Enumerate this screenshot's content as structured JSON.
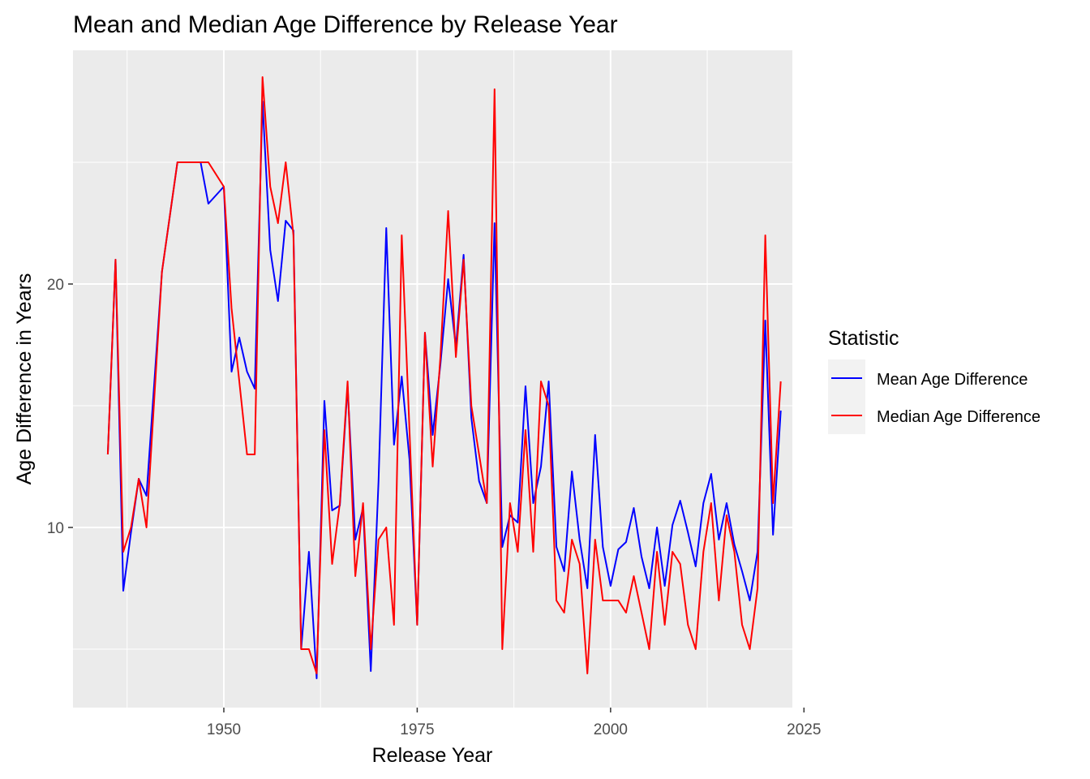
{
  "chart_data": {
    "type": "line",
    "title": "Mean and Median Age Difference by Release Year",
    "xlabel": "Release Year",
    "ylabel": "Age Difference in Years",
    "xlim": [
      1930.5,
      2023.5
    ],
    "ylim": [
      2.6,
      29.6
    ],
    "x_ticks": [
      1950,
      1975,
      2000,
      2025
    ],
    "x_tick_labels": [
      "1950",
      "1975",
      "2000",
      "2025"
    ],
    "y_ticks": [
      10,
      20
    ],
    "y_tick_labels": [
      "10",
      "20"
    ],
    "y_minor_ticks": [
      5,
      15,
      25
    ],
    "x_minor_ticks": [
      1937.5,
      1962.5,
      1987.5,
      2012.5
    ],
    "grid": true,
    "legend_title": "Statistic",
    "legend_position": "right",
    "series": [
      {
        "name": "Mean Age Difference",
        "color": "#0000ff",
        "points": [
          [
            1935,
            13.0
          ],
          [
            1936,
            21.0
          ],
          [
            1937,
            7.4
          ],
          [
            1938,
            9.8
          ],
          [
            1939,
            12.0
          ],
          [
            1940,
            11.3
          ],
          [
            1942,
            20.5
          ],
          [
            1944,
            25.0
          ],
          [
            1946,
            25.0
          ],
          [
            1947,
            25.0
          ],
          [
            1948,
            23.3
          ],
          [
            1950,
            24.0
          ],
          [
            1951,
            16.4
          ],
          [
            1952,
            17.8
          ],
          [
            1953,
            16.4
          ],
          [
            1954,
            15.7
          ],
          [
            1955,
            27.5
          ],
          [
            1956,
            21.4
          ],
          [
            1957,
            19.3
          ],
          [
            1958,
            22.6
          ],
          [
            1959,
            22.2
          ],
          [
            1960,
            5.0
          ],
          [
            1961,
            9.0
          ],
          [
            1962,
            3.8
          ],
          [
            1963,
            15.2
          ],
          [
            1964,
            10.7
          ],
          [
            1965,
            10.9
          ],
          [
            1966,
            15.8
          ],
          [
            1967,
            9.5
          ],
          [
            1968,
            10.8
          ],
          [
            1969,
            4.1
          ],
          [
            1970,
            11.9
          ],
          [
            1971,
            22.3
          ],
          [
            1972,
            13.4
          ],
          [
            1973,
            16.2
          ],
          [
            1974,
            12.8
          ],
          [
            1975,
            6.0
          ],
          [
            1976,
            18.0
          ],
          [
            1977,
            13.8
          ],
          [
            1978,
            16.7
          ],
          [
            1979,
            20.2
          ],
          [
            1980,
            17.4
          ],
          [
            1981,
            21.2
          ],
          [
            1982,
            14.5
          ],
          [
            1983,
            11.9
          ],
          [
            1984,
            11.0
          ],
          [
            1985,
            22.5
          ],
          [
            1986,
            9.2
          ],
          [
            1987,
            10.5
          ],
          [
            1988,
            10.2
          ],
          [
            1989,
            15.8
          ],
          [
            1990,
            11.0
          ],
          [
            1991,
            12.5
          ],
          [
            1992,
            16.0
          ],
          [
            1993,
            9.2
          ],
          [
            1994,
            8.2
          ],
          [
            1995,
            12.3
          ],
          [
            1996,
            9.5
          ],
          [
            1997,
            7.5
          ],
          [
            1998,
            13.8
          ],
          [
            1999,
            9.2
          ],
          [
            2000,
            7.6
          ],
          [
            2001,
            9.1
          ],
          [
            2002,
            9.4
          ],
          [
            2003,
            10.8
          ],
          [
            2004,
            8.8
          ],
          [
            2005,
            7.5
          ],
          [
            2006,
            10.0
          ],
          [
            2007,
            7.6
          ],
          [
            2008,
            10.1
          ],
          [
            2009,
            11.1
          ],
          [
            2010,
            9.8
          ],
          [
            2011,
            8.4
          ],
          [
            2012,
            11.0
          ],
          [
            2013,
            12.2
          ],
          [
            2014,
            9.5
          ],
          [
            2015,
            11.0
          ],
          [
            2016,
            9.3
          ],
          [
            2017,
            8.2
          ],
          [
            2018,
            7.0
          ],
          [
            2019,
            9.0
          ],
          [
            2020,
            18.5
          ],
          [
            2021,
            9.7
          ],
          [
            2022,
            14.8
          ]
        ]
      },
      {
        "name": "Median Age Difference",
        "color": "#ff0000",
        "points": [
          [
            1935,
            13.0
          ],
          [
            1936,
            21.0
          ],
          [
            1937,
            9.0
          ],
          [
            1938,
            10.0
          ],
          [
            1939,
            12.0
          ],
          [
            1940,
            10.0
          ],
          [
            1942,
            20.5
          ],
          [
            1944,
            25.0
          ],
          [
            1946,
            25.0
          ],
          [
            1947,
            25.0
          ],
          [
            1948,
            25.0
          ],
          [
            1950,
            24.0
          ],
          [
            1951,
            19.0
          ],
          [
            1952,
            16.0
          ],
          [
            1953,
            13.0
          ],
          [
            1954,
            13.0
          ],
          [
            1955,
            28.5
          ],
          [
            1956,
            24.0
          ],
          [
            1957,
            22.5
          ],
          [
            1958,
            25.0
          ],
          [
            1959,
            22.0
          ],
          [
            1960,
            5.0
          ],
          [
            1961,
            5.0
          ],
          [
            1962,
            4.0
          ],
          [
            1963,
            14.0
          ],
          [
            1964,
            8.5
          ],
          [
            1965,
            11.0
          ],
          [
            1966,
            16.0
          ],
          [
            1967,
            8.0
          ],
          [
            1968,
            11.0
          ],
          [
            1969,
            5.0
          ],
          [
            1970,
            9.5
          ],
          [
            1971,
            10.0
          ],
          [
            1972,
            6.0
          ],
          [
            1973,
            22.0
          ],
          [
            1974,
            14.0
          ],
          [
            1975,
            6.0
          ],
          [
            1976,
            18.0
          ],
          [
            1977,
            12.5
          ],
          [
            1978,
            17.0
          ],
          [
            1979,
            23.0
          ],
          [
            1980,
            17.0
          ],
          [
            1981,
            21.0
          ],
          [
            1982,
            15.0
          ],
          [
            1983,
            13.0
          ],
          [
            1984,
            11.0
          ],
          [
            1985,
            28.0
          ],
          [
            1986,
            5.0
          ],
          [
            1987,
            11.0
          ],
          [
            1988,
            9.0
          ],
          [
            1989,
            14.0
          ],
          [
            1990,
            9.0
          ],
          [
            1991,
            16.0
          ],
          [
            1992,
            15.0
          ],
          [
            1993,
            7.0
          ],
          [
            1994,
            6.5
          ],
          [
            1995,
            9.5
          ],
          [
            1996,
            8.5
          ],
          [
            1997,
            4.0
          ],
          [
            1998,
            9.5
          ],
          [
            1999,
            7.0
          ],
          [
            2000,
            7.0
          ],
          [
            2001,
            7.0
          ],
          [
            2002,
            6.5
          ],
          [
            2003,
            8.0
          ],
          [
            2004,
            6.5
          ],
          [
            2005,
            5.0
          ],
          [
            2006,
            9.0
          ],
          [
            2007,
            6.0
          ],
          [
            2008,
            9.0
          ],
          [
            2009,
            8.5
          ],
          [
            2010,
            6.0
          ],
          [
            2011,
            5.0
          ],
          [
            2012,
            9.0
          ],
          [
            2013,
            11.0
          ],
          [
            2014,
            7.0
          ],
          [
            2015,
            10.5
          ],
          [
            2016,
            9.0
          ],
          [
            2017,
            6.0
          ],
          [
            2018,
            5.0
          ],
          [
            2019,
            7.5
          ],
          [
            2020,
            22.0
          ],
          [
            2021,
            11.0
          ],
          [
            2022,
            16.0
          ]
        ]
      }
    ]
  }
}
